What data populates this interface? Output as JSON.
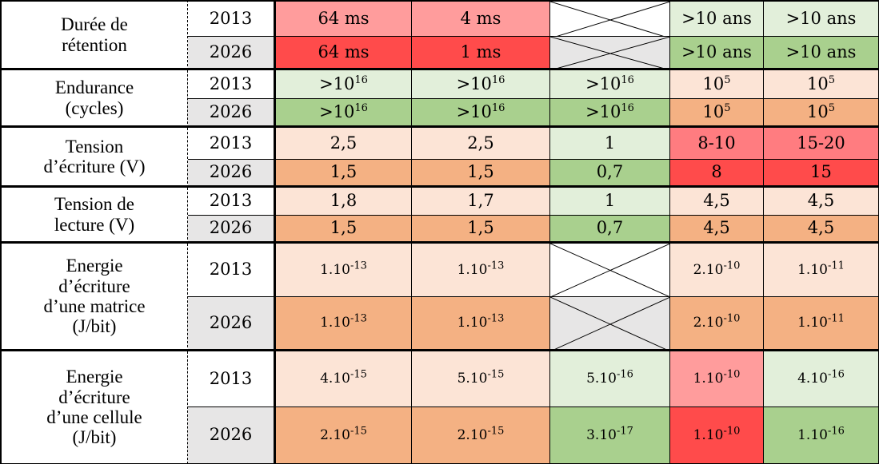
{
  "table": {
    "groups": [
      {
        "label": [
          "Durée de",
          "rétention"
        ],
        "rows": [
          {
            "year": "2013",
            "cells": [
              {
                "text": "64 ms",
                "color": "#ff9c9c"
              },
              {
                "text": "4 ms",
                "color": "#ff9c9c"
              },
              {
                "crossed": true,
                "color": "#ffffff"
              },
              {
                "text": ">10 ans",
                "color": "#e2efda"
              },
              {
                "text": ">10 ans",
                "color": "#e2efda"
              }
            ]
          },
          {
            "year": "2026",
            "cells": [
              {
                "text": "64 ms",
                "color": "#ff4b4b"
              },
              {
                "text": "1 ms",
                "color": "#ff4b4b"
              },
              {
                "crossed": true,
                "color": "#e7e6e6"
              },
              {
                "text": ">10 ans",
                "color": "#a9d08e"
              },
              {
                "text": ">10 ans",
                "color": "#a9d08e"
              }
            ]
          }
        ]
      },
      {
        "label": [
          "Endurance",
          "(cycles)"
        ],
        "rows": [
          {
            "year": "2013",
            "cells": [
              {
                "text": ">10",
                "sup": "16",
                "color": "#e2efda"
              },
              {
                "text": ">10",
                "sup": "16",
                "color": "#e2efda"
              },
              {
                "text": ">10",
                "sup": "16",
                "color": "#e2efda"
              },
              {
                "text": "10",
                "sup": "5",
                "color": "#fce4d6"
              },
              {
                "text": "10",
                "sup": "5",
                "color": "#fce4d6"
              }
            ]
          },
          {
            "year": "2026",
            "cells": [
              {
                "text": ">10",
                "sup": "16",
                "color": "#a9d08e"
              },
              {
                "text": ">10",
                "sup": "16",
                "color": "#a9d08e"
              },
              {
                "text": ">10",
                "sup": "16",
                "color": "#a9d08e"
              },
              {
                "text": "10",
                "sup": "5",
                "color": "#f4b183"
              },
              {
                "text": "10",
                "sup": "5",
                "color": "#f4b183"
              }
            ]
          }
        ]
      },
      {
        "label": [
          "Tension",
          "d’écriture (V)"
        ],
        "rows": [
          {
            "year": "2013",
            "cells": [
              {
                "text": "2,5",
                "color": "#fce4d6"
              },
              {
                "text": "2,5",
                "color": "#fce4d6"
              },
              {
                "text": "1",
                "color": "#e2efda"
              },
              {
                "text": "8-10",
                "color": "#ff7c80"
              },
              {
                "text": "15-20",
                "color": "#ff7c80"
              }
            ]
          },
          {
            "year": "2026",
            "cells": [
              {
                "text": "1,5",
                "color": "#f4b183"
              },
              {
                "text": "1,5",
                "color": "#f4b183"
              },
              {
                "text": "0,7",
                "color": "#a9d08e"
              },
              {
                "text": "8",
                "color": "#ff4b4b"
              },
              {
                "text": "15",
                "color": "#ff4b4b"
              }
            ]
          }
        ]
      },
      {
        "label": [
          "Tension de",
          "lecture (V)"
        ],
        "rows": [
          {
            "year": "2013",
            "cells": [
              {
                "text": "1,8",
                "color": "#fce4d6"
              },
              {
                "text": "1,7",
                "color": "#fce4d6"
              },
              {
                "text": "1",
                "color": "#e2efda"
              },
              {
                "text": "4,5",
                "color": "#fce4d6"
              },
              {
                "text": "4,5",
                "color": "#fce4d6"
              }
            ]
          },
          {
            "year": "2026",
            "cells": [
              {
                "text": "1,5",
                "color": "#f4b183"
              },
              {
                "text": "1,5",
                "color": "#f4b183"
              },
              {
                "text": "0,7",
                "color": "#a9d08e"
              },
              {
                "text": "4,5",
                "color": "#f4b183"
              },
              {
                "text": "4,5",
                "color": "#f4b183"
              }
            ]
          }
        ]
      },
      {
        "label": [
          "Energie",
          "d’écriture",
          "d’une matrice",
          "(J/bit)"
        ],
        "rows": [
          {
            "year": "2013",
            "cells": [
              {
                "text": "1.10",
                "sup": "-13",
                "color": "#fce4d6"
              },
              {
                "text": "1.10",
                "sup": "-13",
                "color": "#fce4d6"
              },
              {
                "crossed": true,
                "color": "#ffffff"
              },
              {
                "text": "2.10",
                "sup": "-10",
                "color": "#fce4d6"
              },
              {
                "text": "1.10",
                "sup": "-11",
                "color": "#fce4d6"
              }
            ]
          },
          {
            "year": "2026",
            "cells": [
              {
                "text": "1.10",
                "sup": "-13",
                "color": "#f4b183"
              },
              {
                "text": "1.10",
                "sup": "-13",
                "color": "#f4b183"
              },
              {
                "crossed": true,
                "color": "#e7e6e6"
              },
              {
                "text": "2.10",
                "sup": "-10",
                "color": "#f4b183"
              },
              {
                "text": "1.10",
                "sup": "-11",
                "color": "#f4b183"
              }
            ]
          }
        ]
      },
      {
        "label": [
          "Energie",
          "d’écriture",
          "d’une cellule",
          "(J/bit)"
        ],
        "rows": [
          {
            "year": "2013",
            "cells": [
              {
                "text": "4.10",
                "sup": "-15",
                "color": "#fce4d6"
              },
              {
                "text": "5.10",
                "sup": "-15",
                "color": "#fce4d6"
              },
              {
                "text": "5.10",
                "sup": "-16",
                "color": "#e2efda"
              },
              {
                "text": "1.10",
                "sup": "-10",
                "color": "#ff9c9c"
              },
              {
                "text": "4.10",
                "sup": "-16",
                "color": "#e2efda"
              }
            ]
          },
          {
            "year": "2026",
            "cells": [
              {
                "text": "2.10",
                "sup": "-15",
                "color": "#f4b183"
              },
              {
                "text": "2.10",
                "sup": "-15",
                "color": "#f4b183"
              },
              {
                "text": "3.10",
                "sup": "-17",
                "color": "#a9d08e"
              },
              {
                "text": "1.10",
                "sup": "-10",
                "color": "#ff4b4b"
              },
              {
                "text": "1.10",
                "sup": "-16",
                "color": "#a9d08e"
              }
            ]
          }
        ]
      }
    ]
  }
}
